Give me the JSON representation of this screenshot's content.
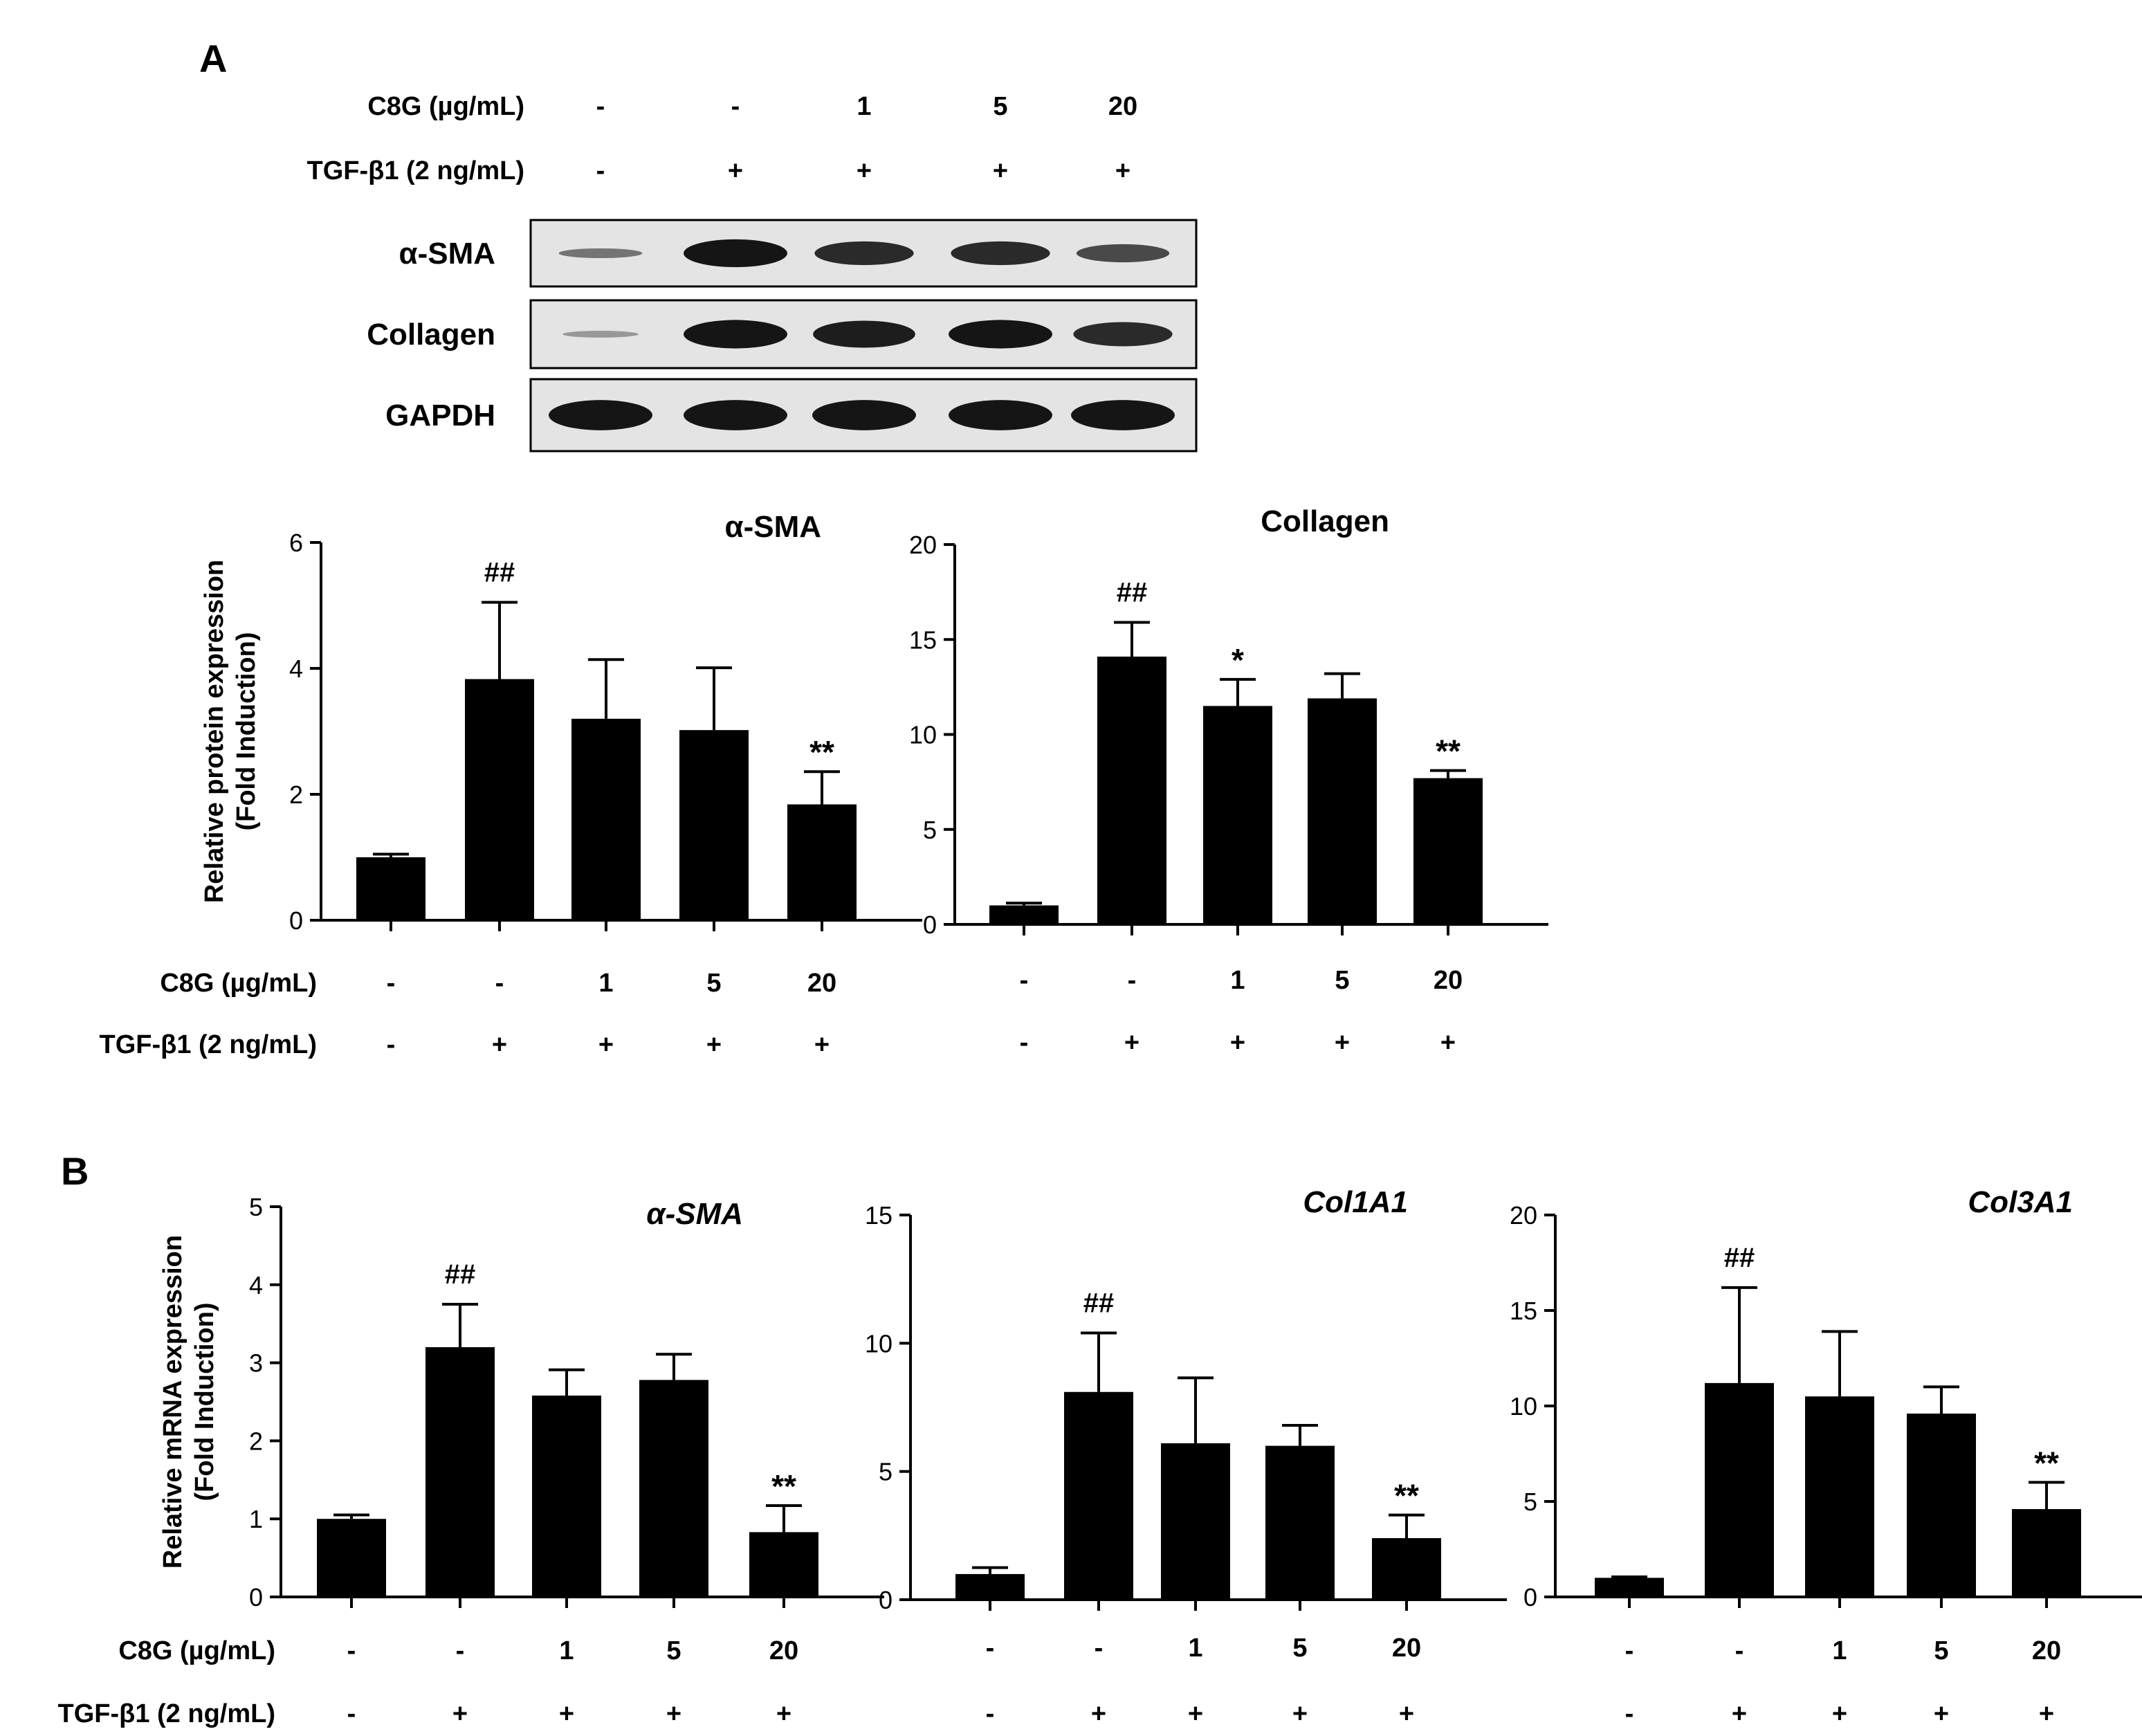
{
  "panels": {
    "A": "A",
    "B": "B"
  },
  "colors": {
    "bar": "#000000",
    "axis": "#000000",
    "blot_background": "#e4e4e4",
    "blot_band": "#151515"
  },
  "western_blot": {
    "treatment_rows": [
      {
        "label": "C8G (µg/mL)",
        "values": [
          "-",
          "-",
          "1",
          "5",
          "20"
        ]
      },
      {
        "label": "TGF-β1 (2 ng/mL)",
        "values": [
          "-",
          "+",
          "+",
          "+",
          "+"
        ]
      }
    ],
    "blots": [
      {
        "label": "α-SMA",
        "band_intensity": [
          0.35,
          1.0,
          0.85,
          0.85,
          0.65
        ]
      },
      {
        "label": "Collagen",
        "band_intensity": [
          0.1,
          1.0,
          0.95,
          1.0,
          0.85
        ]
      },
      {
        "label": "GAPDH",
        "band_intensity": [
          1.0,
          1.0,
          1.0,
          1.0,
          1.0
        ]
      }
    ]
  },
  "chart_data": [
    {
      "type": "bar",
      "title": "α-SMA",
      "title_italic": false,
      "ylabel": [
        "Relative protein expression",
        "(Fold Induction)"
      ],
      "ylim": [
        0,
        6
      ],
      "yticks": [
        0,
        2,
        4,
        6
      ],
      "categories": [
        "1",
        "2",
        "3",
        "4",
        "5"
      ],
      "values": [
        1.0,
        3.83,
        3.2,
        3.02,
        1.84
      ],
      "errors": [
        0.05,
        1.22,
        0.94,
        0.99,
        0.52
      ],
      "annotations": [
        "",
        "##",
        "",
        "",
        "**"
      ],
      "treatment_rows": [
        {
          "label": "C8G (µg/mL)",
          "values": [
            "-",
            "-",
            "1",
            "5",
            "20"
          ]
        },
        {
          "label": "TGF-β1 (2 ng/mL)",
          "values": [
            "-",
            "+",
            "+",
            "+",
            "+"
          ]
        }
      ]
    },
    {
      "type": "bar",
      "title": "Collagen",
      "title_italic": false,
      "ylabel": [],
      "ylim": [
        0,
        20
      ],
      "yticks": [
        0,
        5,
        10,
        15,
        20
      ],
      "categories": [
        "1",
        "2",
        "3",
        "4",
        "5"
      ],
      "values": [
        1.0,
        14.1,
        11.5,
        11.9,
        7.7
      ],
      "errors": [
        0.12,
        1.8,
        1.4,
        1.3,
        0.4
      ],
      "annotations": [
        "",
        "##",
        "*",
        "",
        "**"
      ],
      "treatment_rows": [
        {
          "label": "",
          "values": [
            "-",
            "-",
            "1",
            "5",
            "20"
          ]
        },
        {
          "label": "",
          "values": [
            "-",
            "+",
            "+",
            "+",
            "+"
          ]
        }
      ]
    },
    {
      "type": "bar",
      "title": "α-SMA",
      "title_italic": true,
      "ylabel": [
        "Relative mRNA expression",
        "(Fold Induction)"
      ],
      "ylim": [
        0,
        5
      ],
      "yticks": [
        0,
        1,
        2,
        3,
        4,
        5
      ],
      "categories": [
        "1",
        "2",
        "3",
        "4",
        "5"
      ],
      "values": [
        1.0,
        3.2,
        2.58,
        2.78,
        0.83
      ],
      "errors": [
        0.05,
        0.55,
        0.33,
        0.33,
        0.34
      ],
      "annotations": [
        "",
        "##",
        "",
        "",
        "**"
      ],
      "treatment_rows": [
        {
          "label": "C8G (µg/mL)",
          "values": [
            "-",
            "-",
            "1",
            "5",
            "20"
          ]
        },
        {
          "label": "TGF-β1 (2 ng/mL)",
          "values": [
            "-",
            "+",
            "+",
            "+",
            "+"
          ]
        }
      ]
    },
    {
      "type": "bar",
      "title": "Col1A1",
      "title_italic": true,
      "ylabel": [],
      "ylim": [
        0,
        15
      ],
      "yticks": [
        0,
        5,
        10,
        15
      ],
      "categories": [
        "1",
        "2",
        "3",
        "4",
        "5"
      ],
      "values": [
        1.0,
        8.1,
        6.1,
        6.0,
        2.4
      ],
      "errors": [
        0.25,
        2.3,
        2.55,
        0.8,
        0.9
      ],
      "annotations": [
        "",
        "##",
        "",
        "",
        "**"
      ],
      "treatment_rows": [
        {
          "label": "",
          "values": [
            "-",
            "-",
            "1",
            "5",
            "20"
          ]
        },
        {
          "label": "",
          "values": [
            "-",
            "+",
            "+",
            "+",
            "+"
          ]
        }
      ]
    },
    {
      "type": "bar",
      "title": "Col3A1",
      "title_italic": true,
      "ylabel": [],
      "ylim": [
        0,
        20
      ],
      "yticks": [
        0,
        5,
        10,
        15,
        20
      ],
      "categories": [
        "1",
        "2",
        "3",
        "4",
        "5"
      ],
      "values": [
        1.0,
        11.2,
        10.5,
        9.6,
        4.6
      ],
      "errors": [
        0.05,
        5.0,
        3.4,
        1.4,
        1.4
      ],
      "annotations": [
        "##",
        "",
        "",
        "",
        "**"
      ],
      "annotation_positions": [
        1,
        -1,
        -1,
        -1,
        4
      ],
      "treatment_rows": [
        {
          "label": "",
          "values": [
            "-",
            "-",
            "1",
            "5",
            "20"
          ]
        },
        {
          "label": "",
          "values": [
            "-",
            "+",
            "+",
            "+",
            "+"
          ]
        }
      ]
    }
  ]
}
